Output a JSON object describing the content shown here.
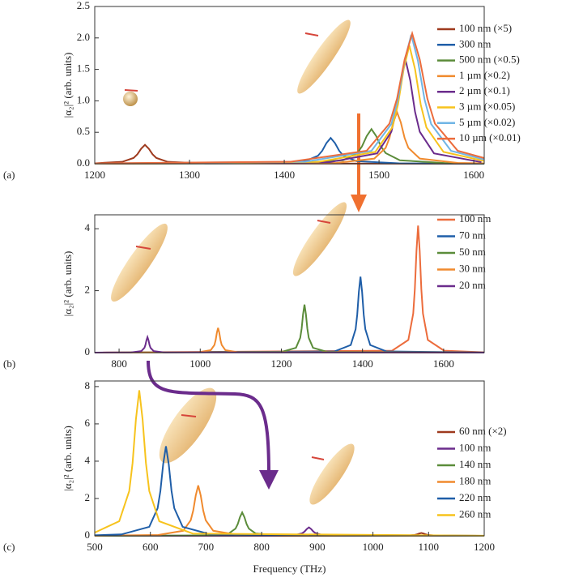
{
  "chart_data": [
    {
      "type": "line",
      "panel_label": "(a)",
      "y_label": "|α₂|² (arb. units)",
      "xlim": [
        1200,
        1611
      ],
      "ylim": [
        0,
        2.5
      ],
      "xticks": [
        1200,
        1300,
        1400,
        1500,
        1600
      ],
      "yticks": [
        {
          "value": 0,
          "label": "0.0"
        },
        0.5,
        {
          "value": 1,
          "label": "1.0"
        },
        1.5,
        {
          "value": 2,
          "label": "2.0"
        },
        2.5
      ],
      "series": [
        {
          "name": "100 nm (×5)",
          "color": "#9e3a1e",
          "x": [
            1200,
            1229,
            1241,
            1245,
            1249,
            1253,
            1257,
            1261,
            1265,
            1277,
            1317,
            1611
          ],
          "values": [
            0.007,
            0.03,
            0.092,
            0.15,
            0.24,
            0.3,
            0.24,
            0.15,
            0.092,
            0.03,
            0.005,
            0
          ]
        },
        {
          "name": "300 nm",
          "color": "#1f5ea8",
          "x": [
            1200,
            1377,
            1422,
            1435.5,
            1440,
            1444.5,
            1449,
            1453.5,
            1458,
            1462.5,
            1476,
            1521,
            1611
          ],
          "values": [
            0.001,
            0.006,
            0.041,
            0.126,
            0.205,
            0.328,
            0.41,
            0.328,
            0.205,
            0.126,
            0.041,
            0.006,
            0.002
          ]
        },
        {
          "name": "500 nm (×0.5)",
          "color": "#5b8c3a",
          "x": [
            1200,
            1412,
            1462,
            1477,
            1482,
            1487,
            1492,
            1497,
            1502,
            1507,
            1522,
            1572,
            1611
          ],
          "values": [
            0.001,
            0.008,
            0.055,
            0.169,
            0.275,
            0.44,
            0.55,
            0.44,
            0.275,
            0.169,
            0.055,
            0.008,
            0.004
          ]
        },
        {
          "name": "1 µm (×0.2)",
          "color": "#f08a2e",
          "x": [
            1200,
            1455,
            1495,
            1507,
            1511,
            1515,
            1519,
            1523,
            1527,
            1531,
            1543,
            1583,
            1611
          ],
          "values": [
            0.001,
            0.013,
            0.082,
            0.252,
            0.41,
            0.656,
            0.82,
            0.656,
            0.41,
            0.252,
            0.082,
            0.013,
            0.006
          ]
        },
        {
          "name": "2 µm (×0.1)",
          "color": "#6b2c8c",
          "x": [
            1200,
            1448,
            1498,
            1513,
            1518,
            1523,
            1528,
            1533,
            1538,
            1543,
            1558,
            1608
          ],
          "values": [
            0.002,
            0.025,
            0.165,
            0.508,
            0.825,
            1.32,
            1.65,
            1.32,
            0.825,
            0.508,
            0.165,
            0.025
          ]
        },
        {
          "name": "3 µm (×0.05)",
          "color": "#f7c31d",
          "x": [
            1200,
            1436,
            1496,
            1514,
            1520,
            1526,
            1532,
            1538,
            1544,
            1550,
            1568,
            1611
          ],
          "values": [
            0.002,
            0.029,
            0.188,
            0.578,
            0.94,
            1.504,
            1.88,
            1.504,
            0.94,
            0.578,
            0.188,
            0.043
          ]
        },
        {
          "name": "5 µm (×0.02)",
          "color": "#70b5e5",
          "x": [
            1200,
            1422,
            1492,
            1513,
            1520,
            1527,
            1534,
            1541,
            1548,
            1555,
            1576,
            1611
          ],
          "values": [
            0.004,
            0.032,
            0.205,
            0.631,
            1.025,
            1.64,
            2.05,
            1.64,
            1.025,
            0.631,
            0.205,
            0.067
          ]
        },
        {
          "name": "10 µm (×0.01)",
          "color": "#ec6c3c",
          "x": [
            1200,
            1407,
            1487,
            1511,
            1519,
            1527,
            1535,
            1543,
            1551,
            1559,
            1583,
            1611
          ],
          "values": [
            0.005,
            0.032,
            0.207,
            0.637,
            1.035,
            1.656,
            2.07,
            1.656,
            1.035,
            0.637,
            0.207,
            0.09
          ]
        }
      ]
    },
    {
      "type": "line",
      "panel_label": "(b)",
      "y_label": "|α₂|² (arb. units)",
      "xlim": [
        740,
        1700
      ],
      "ylim": [
        0,
        4.45
      ],
      "xticks": [
        800,
        1000,
        1200,
        1400,
        1600
      ],
      "yticks": [
        0,
        2,
        4
      ],
      "series": [
        {
          "name": "100 nm",
          "color": "#ec6c3c",
          "x": [
            740,
            1473,
            1513,
            1525,
            1529,
            1533,
            1537,
            1541,
            1545,
            1549,
            1561,
            1601,
            1700
          ],
          "values": [
            0,
            0.063,
            0.41,
            1.262,
            2.05,
            3.28,
            4.1,
            3.28,
            2.05,
            1.262,
            0.41,
            0.063,
            0.01
          ]
        },
        {
          "name": "70 nm",
          "color": "#1f5ea8",
          "x": [
            740,
            1331,
            1371,
            1383,
            1387,
            1391,
            1395,
            1399,
            1403,
            1407,
            1419,
            1459,
            1700
          ],
          "values": [
            0,
            0.038,
            0.245,
            0.754,
            1.225,
            1.96,
            2.45,
            1.96,
            1.225,
            0.754,
            0.245,
            0.038,
            0.002
          ]
        },
        {
          "name": "50 nm",
          "color": "#5b8c3a",
          "x": [
            740,
            1201,
            1236,
            1246.5,
            1250,
            1253.5,
            1257,
            1260.5,
            1264,
            1267.5,
            1278,
            1313,
            1700
          ],
          "values": [
            0,
            0.024,
            0.155,
            0.477,
            0.775,
            1.24,
            1.55,
            1.24,
            0.775,
            0.477,
            0.155,
            0.024,
            0
          ]
        },
        {
          "name": "30 nm",
          "color": "#f08a2e",
          "x": [
            740,
            996,
            1026,
            1035,
            1038,
            1041,
            1044,
            1047,
            1050,
            1053,
            1062,
            1092,
            1700
          ],
          "values": [
            0,
            0.012,
            0.08,
            0.246,
            0.4,
            0.64,
            0.8,
            0.64,
            0.4,
            0.246,
            0.08,
            0.012,
            0
          ]
        },
        {
          "name": "20 nm",
          "color": "#6b2c8c",
          "x": [
            740,
            830,
            855,
            862.5,
            865,
            867.5,
            870,
            872.5,
            875,
            877.5,
            885,
            910,
            1700
          ],
          "values": [
            0.001,
            0.008,
            0.05,
            0.154,
            0.25,
            0.4,
            0.5,
            0.4,
            0.25,
            0.154,
            0.05,
            0.008,
            0
          ]
        }
      ]
    },
    {
      "type": "line",
      "panel_label": "(c)",
      "y_label": "|α₂|² (arb. units)",
      "x_label": "Frequency (THz)",
      "xlim": [
        500,
        1200
      ],
      "ylim": [
        0,
        8.3
      ],
      "xticks": [
        500,
        600,
        700,
        800,
        900,
        1000,
        1100,
        1200
      ],
      "yticks": [
        0,
        2,
        4,
        6,
        8
      ],
      "series": [
        {
          "name": "60 nm (×2)",
          "color": "#9e3a1e",
          "x": [
            500,
            1023,
            1063,
            1075,
            1079,
            1083,
            1087,
            1091,
            1095,
            1099,
            1111,
            1151,
            1200
          ],
          "values": [
            0,
            0.002,
            0.015,
            0.046,
            0.075,
            0.12,
            0.15,
            0.12,
            0.075,
            0.046,
            0.015,
            0.002,
            0.001
          ]
        },
        {
          "name": "100 nm",
          "color": "#6b2c8c",
          "x": [
            500,
            821,
            861,
            873,
            877,
            881,
            885,
            889,
            893,
            897,
            909,
            949,
            1200
          ],
          "values": [
            0,
            0.007,
            0.045,
            0.138,
            0.225,
            0.36,
            0.45,
            0.36,
            0.225,
            0.138,
            0.045,
            0.007,
            0
          ]
        },
        {
          "name": "140 nm",
          "color": "#5b8c3a",
          "x": [
            500,
            701,
            741,
            753,
            757,
            761,
            765,
            769,
            773,
            777,
            789,
            829,
            1200
          ],
          "values": [
            0.001,
            0.019,
            0.125,
            0.385,
            0.625,
            1.0,
            1.25,
            1.0,
            0.625,
            0.385,
            0.125,
            0.019,
            0
          ]
        },
        {
          "name": "180 nm",
          "color": "#f08a2e",
          "x": [
            500,
            614,
            659,
            672.5,
            677,
            681.5,
            686,
            690.5,
            695,
            699.5,
            713,
            758,
            1200
          ],
          "values": [
            0.006,
            0.042,
            0.27,
            0.831,
            1.35,
            2.16,
            2.7,
            2.16,
            1.35,
            0.831,
            0.27,
            0.042,
            0.001
          ]
        },
        {
          "name": "220 nm",
          "color": "#1f5ea8",
          "x": [
            500,
            548,
            598,
            613,
            618,
            623,
            628,
            633,
            638,
            643,
            658,
            708,
            1200
          ],
          "values": [
            0.029,
            0.074,
            0.48,
            1.477,
            2.4,
            3.84,
            4.8,
            3.84,
            2.4,
            1.477,
            0.48,
            0.074,
            0.001
          ]
        },
        {
          "name": "260 nm",
          "color": "#f7c31d",
          "x": [
            500,
            544,
            562,
            568,
            574,
            580,
            586,
            592,
            598,
            616,
            676,
            1200
          ],
          "values": [
            0.172,
            0.78,
            2.4,
            3.9,
            6.24,
            7.8,
            6.24,
            3.9,
            2.4,
            0.78,
            0.12,
            0.003
          ]
        }
      ]
    }
  ]
}
